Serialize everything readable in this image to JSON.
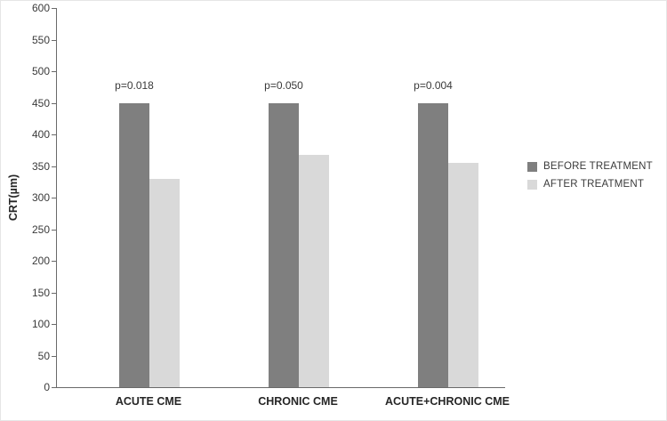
{
  "chart_data": {
    "type": "bar",
    "title": "",
    "xlabel": "",
    "ylabel": "CRT(µm)",
    "ylim": [
      0,
      600
    ],
    "ytick_step": 50,
    "grid": false,
    "legend_position": "right",
    "categories": [
      "ACUTE CME",
      "CHRONIC CME",
      "ACUTE+CHRONIC CME"
    ],
    "series": [
      {
        "name": "BEFORE TREATMENT",
        "color": "#7f7f7f",
        "values": [
          450,
          450,
          450
        ]
      },
      {
        "name": "AFTER TREATMENT",
        "color": "#d9d9d9",
        "values": [
          330,
          368,
          355
        ]
      }
    ],
    "annotations": [
      "p=0.018",
      "p=0.050",
      "p=0.004"
    ]
  }
}
